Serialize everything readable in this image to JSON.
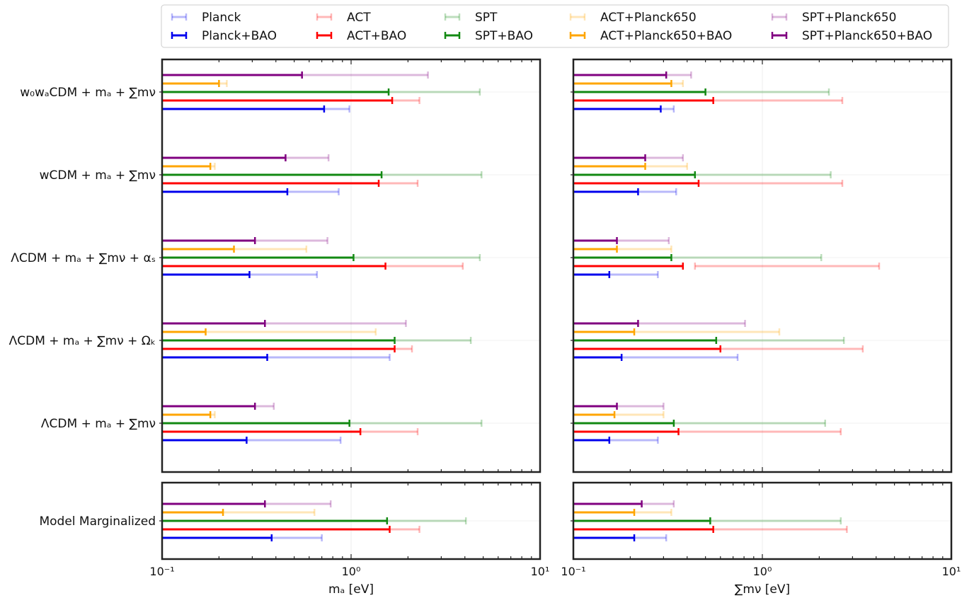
{
  "chart_data": {
    "type": "bar",
    "orientation": "horizontal-errorbar-upper-limits",
    "x_scale": "log",
    "legend_position": "top",
    "grid": true,
    "series": [
      {
        "name": "Planck",
        "color": "#0000ee",
        "style": "faint"
      },
      {
        "name": "Planck+BAO",
        "color": "#0000ee",
        "style": "solid"
      },
      {
        "name": "ACT",
        "color": "#ff0000",
        "style": "faint"
      },
      {
        "name": "ACT+BAO",
        "color": "#ff0000",
        "style": "solid"
      },
      {
        "name": "SPT",
        "color": "#138a13",
        "style": "faint"
      },
      {
        "name": "SPT+BAO",
        "color": "#138a13",
        "style": "solid"
      },
      {
        "name": "ACT+Planck650",
        "color": "#ffa500",
        "style": "faint"
      },
      {
        "name": "ACT+Planck650+BAO",
        "color": "#ffa500",
        "style": "solid"
      },
      {
        "name": "SPT+Planck650",
        "color": "#800080",
        "style": "faint"
      },
      {
        "name": "SPT+Planck650+BAO",
        "color": "#800080",
        "style": "solid"
      }
    ],
    "rows": [
      {
        "label": "w₀wₐCDM + mₐ + ∑mν"
      },
      {
        "label": "wCDM + mₐ + ∑mν"
      },
      {
        "label": "ΛCDM + mₐ + ∑mν + αₛ"
      },
      {
        "label": "ΛCDM + mₐ + ∑mν + Ωₖ"
      },
      {
        "label": "ΛCDM + mₐ + ∑mν"
      },
      {
        "label": "Model Marginalized"
      }
    ],
    "panels": [
      {
        "xlabel": "mₐ [eV]",
        "xlim": [
          0.1,
          10
        ],
        "ticks": [
          "10⁻¹",
          "10⁰",
          "10¹"
        ],
        "values": [
          {
            "Planck": [
              0.1,
              0.98
            ],
            "Planck+BAO": [
              0.1,
              0.72
            ],
            "ACT": [
              0.1,
              2.3
            ],
            "ACT+BAO": [
              0.1,
              1.65
            ],
            "SPT": [
              0.1,
              4.8
            ],
            "SPT+BAO": [
              0.1,
              1.58
            ],
            "ACT+Planck650": [
              0.1,
              0.22
            ],
            "ACT+Planck650+BAO": [
              0.1,
              0.2
            ],
            "SPT+Planck650": [
              0.1,
              2.55
            ],
            "SPT+Planck650+BAO": [
              0.1,
              0.55
            ]
          },
          {
            "Planck": [
              0.1,
              0.86
            ],
            "Planck+BAO": [
              0.1,
              0.46
            ],
            "ACT": [
              0.1,
              2.25
            ],
            "ACT+BAO": [
              0.1,
              1.4
            ],
            "SPT": [
              0.1,
              4.9
            ],
            "SPT+BAO": [
              0.1,
              1.45
            ],
            "ACT+Planck650": [
              0.1,
              0.19
            ],
            "ACT+Planck650+BAO": [
              0.1,
              0.18
            ],
            "SPT+Planck650": [
              0.1,
              0.76
            ],
            "SPT+Planck650+BAO": [
              0.1,
              0.45
            ]
          },
          {
            "Planck": [
              0.1,
              0.66
            ],
            "Planck+BAO": [
              0.1,
              0.29
            ],
            "ACT": [
              0.1,
              3.9
            ],
            "ACT+BAO": [
              0.1,
              1.52
            ],
            "SPT": [
              0.1,
              4.8
            ],
            "SPT+BAO": [
              0.1,
              1.03
            ],
            "ACT+Planck650": [
              0.1,
              0.58
            ],
            "ACT+Planck650+BAO": [
              0.1,
              0.24
            ],
            "SPT+Planck650": [
              0.1,
              0.75
            ],
            "SPT+Planck650+BAO": [
              0.1,
              0.31
            ]
          },
          {
            "Planck": [
              0.1,
              1.6
            ],
            "Planck+BAO": [
              0.1,
              0.36
            ],
            "ACT": [
              0.1,
              2.1
            ],
            "ACT+BAO": [
              0.1,
              1.7
            ],
            "SPT": [
              0.1,
              4.3
            ],
            "SPT+BAO": [
              0.1,
              1.7
            ],
            "ACT+Planck650": [
              0.1,
              1.35
            ],
            "ACT+Planck650+BAO": [
              0.1,
              0.17
            ],
            "SPT+Planck650": [
              0.1,
              1.95
            ],
            "SPT+Planck650+BAO": [
              0.1,
              0.35
            ]
          },
          {
            "Planck": [
              0.1,
              0.88
            ],
            "Planck+BAO": [
              0.1,
              0.28
            ],
            "ACT": [
              0.1,
              2.25
            ],
            "ACT+BAO": [
              0.1,
              1.12
            ],
            "SPT": [
              0.1,
              4.9
            ],
            "SPT+BAO": [
              0.1,
              0.98
            ],
            "ACT+Planck650": [
              0.1,
              0.19
            ],
            "ACT+Planck650+BAO": [
              0.1,
              0.18
            ],
            "SPT+Planck650": [
              0.1,
              0.39
            ],
            "SPT+Planck650+BAO": [
              0.1,
              0.31
            ]
          },
          {
            "Planck": [
              0.1,
              0.7
            ],
            "Planck+BAO": [
              0.1,
              0.38
            ],
            "ACT": [
              0.1,
              2.3
            ],
            "ACT+BAO": [
              0.1,
              1.6
            ],
            "SPT": [
              0.1,
              4.05
            ],
            "SPT+BAO": [
              0.1,
              1.55
            ],
            "ACT+Planck650": [
              0.1,
              0.64
            ],
            "ACT+Planck650+BAO": [
              0.1,
              0.21
            ],
            "SPT+Planck650": [
              0.1,
              0.78
            ],
            "SPT+Planck650+BAO": [
              0.1,
              0.35
            ]
          }
        ]
      },
      {
        "xlabel": "∑mν [eV]",
        "xlim": [
          0.1,
          10
        ],
        "ticks": [
          "10⁻¹",
          "10⁰",
          "10¹"
        ],
        "values": [
          {
            "Planck": [
              0.1,
              0.34
            ],
            "Planck+BAO": [
              0.1,
              0.29
            ],
            "ACT": [
              0.1,
              2.65
            ],
            "ACT+BAO": [
              0.1,
              0.55
            ],
            "SPT": [
              0.1,
              2.25
            ],
            "SPT+BAO": [
              0.1,
              0.5
            ],
            "ACT+Planck650": [
              0.1,
              0.38
            ],
            "ACT+Planck650+BAO": [
              0.1,
              0.33
            ],
            "SPT+Planck650": [
              0.1,
              0.42
            ],
            "SPT+Planck650+BAO": [
              0.1,
              0.31
            ]
          },
          {
            "Planck": [
              0.1,
              0.35
            ],
            "Planck+BAO": [
              0.1,
              0.22
            ],
            "ACT": [
              0.1,
              2.65
            ],
            "ACT+BAO": [
              0.1,
              0.46
            ],
            "SPT": [
              0.1,
              2.3
            ],
            "SPT+BAO": [
              0.1,
              0.44
            ],
            "ACT+Planck650": [
              0.1,
              0.4
            ],
            "ACT+Planck650+BAO": [
              0.1,
              0.24
            ],
            "SPT+Planck650": [
              0.1,
              0.38
            ],
            "SPT+Planck650+BAO": [
              0.1,
              0.24
            ]
          },
          {
            "Planck": [
              0.1,
              0.28
            ],
            "Planck+BAO": [
              0.1,
              0.155
            ],
            "ACT": [
              0.44,
              4.15
            ],
            "ACT+BAO": [
              0.1,
              0.38
            ],
            "SPT": [
              0.1,
              2.05
            ],
            "SPT+BAO": [
              0.1,
              0.33
            ],
            "ACT+Planck650": [
              0.1,
              0.33
            ],
            "ACT+Planck650+BAO": [
              0.1,
              0.17
            ],
            "SPT+Planck650": [
              0.1,
              0.32
            ],
            "SPT+Planck650+BAO": [
              0.1,
              0.17
            ]
          },
          {
            "Planck": [
              0.1,
              0.74
            ],
            "Planck+BAO": [
              0.1,
              0.18
            ],
            "ACT": [
              0.1,
              3.4
            ],
            "ACT+BAO": [
              0.1,
              0.6
            ],
            "SPT": [
              0.1,
              2.7
            ],
            "SPT+BAO": [
              0.1,
              0.57
            ],
            "ACT+Planck650": [
              0.1,
              1.23
            ],
            "ACT+Planck650+BAO": [
              0.1,
              0.21
            ],
            "SPT+Planck650": [
              0.1,
              0.81
            ],
            "SPT+Planck650+BAO": [
              0.1,
              0.22
            ]
          },
          {
            "Planck": [
              0.1,
              0.28
            ],
            "Planck+BAO": [
              0.1,
              0.155
            ],
            "ACT": [
              0.1,
              2.6
            ],
            "ACT+BAO": [
              0.1,
              0.36
            ],
            "SPT": [
              0.1,
              2.15
            ],
            "SPT+BAO": [
              0.1,
              0.34
            ],
            "ACT+Planck650": [
              0.1,
              0.3
            ],
            "ACT+Planck650+BAO": [
              0.1,
              0.165
            ],
            "SPT+Planck650": [
              0.1,
              0.3
            ],
            "SPT+Planck650+BAO": [
              0.1,
              0.17
            ]
          },
          {
            "Planck": [
              0.1,
              0.31
            ],
            "Planck+BAO": [
              0.1,
              0.21
            ],
            "ACT": [
              0.1,
              2.8
            ],
            "ACT+BAO": [
              0.1,
              0.55
            ],
            "SPT": [
              0.1,
              2.6
            ],
            "SPT+BAO": [
              0.1,
              0.53
            ],
            "ACT+Planck650": [
              0.1,
              0.33
            ],
            "ACT+Planck650+BAO": [
              0.1,
              0.21
            ],
            "SPT+Planck650": [
              0.1,
              0.34
            ],
            "SPT+Planck650+BAO": [
              0.1,
              0.23
            ]
          }
        ]
      }
    ]
  }
}
